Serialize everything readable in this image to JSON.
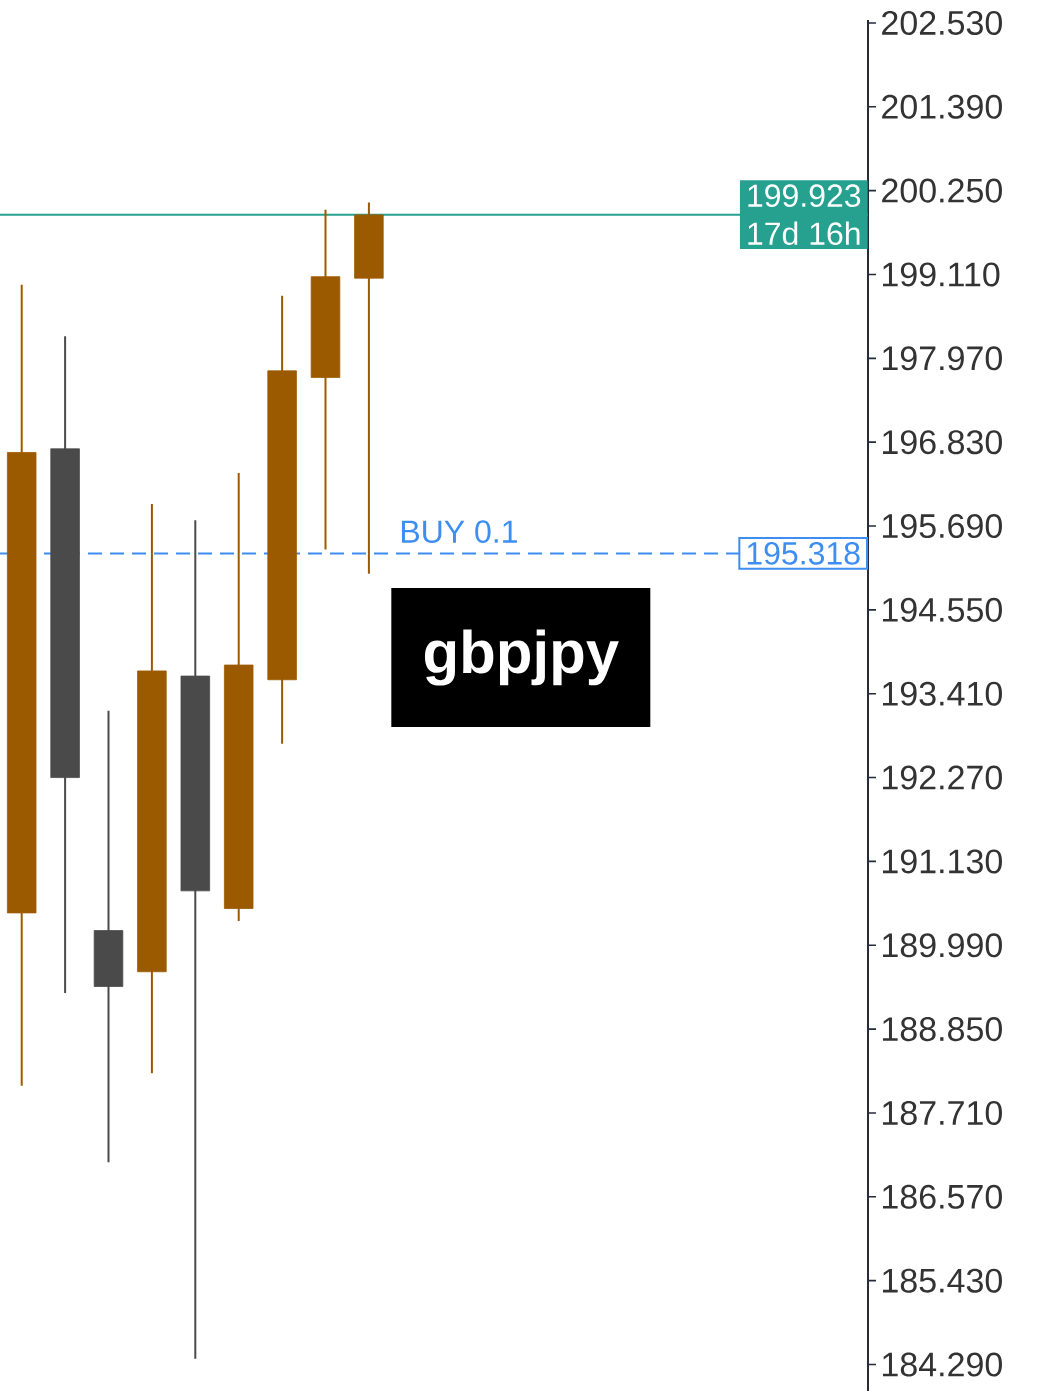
{
  "chart_data": {
    "type": "candlestick",
    "title": "gbpjpy",
    "categories": [
      null,
      null,
      null,
      null,
      null,
      null,
      null,
      null,
      null,
      null,
      null,
      null,
      null,
      null,
      null,
      null,
      null,
      null,
      null,
      null
    ],
    "ohlc": [
      [
        190.43,
        198.97,
        188.08,
        196.69
      ],
      [
        196.74,
        198.27,
        189.34,
        192.27
      ],
      [
        190.19,
        193.18,
        187.04,
        189.43
      ],
      [
        189.63,
        195.99,
        188.25,
        193.72
      ],
      [
        193.65,
        195.77,
        184.37,
        190.73
      ],
      [
        190.49,
        196.41,
        190.32,
        193.8
      ],
      [
        193.6,
        198.82,
        192.73,
        197.8
      ],
      [
        197.71,
        199.99,
        195.37,
        199.08
      ],
      [
        199.06,
        200.09,
        195.04,
        199.92
      ],
      null,
      null,
      null,
      null,
      null,
      null,
      null,
      null,
      null,
      null,
      null
    ],
    "colors": [
      "#9c5a00",
      "#4a4a4a",
      "#4a4a4a",
      "#9c5a00",
      "#4a4a4a",
      "#9c5a00",
      "#9c5a00",
      "#9c5a00",
      "#9c5a00",
      null,
      null,
      null,
      null,
      null,
      null,
      null,
      null,
      null,
      null,
      null
    ],
    "ylim": [
      183.93,
      202.57
    ],
    "yticks": [
      {
        "value": 184.29,
        "label": "184.290"
      },
      {
        "value": 185.43,
        "label": "185.430"
      },
      {
        "value": 186.57,
        "label": "186.570"
      },
      {
        "value": 187.71,
        "label": "187.710"
      },
      {
        "value": 188.85,
        "label": "188.850"
      },
      {
        "value": 189.99,
        "label": "189.990"
      },
      {
        "value": 191.13,
        "label": "191.130"
      },
      {
        "value": 192.27,
        "label": "192.270"
      },
      {
        "value": 193.41,
        "label": "193.410"
      },
      {
        "value": 194.55,
        "label": "194.550"
      },
      {
        "value": 195.69,
        "label": "195.690"
      },
      {
        "value": 196.83,
        "label": "196.830"
      },
      {
        "value": 197.97,
        "label": "197.970"
      },
      {
        "value": 199.11,
        "label": "199.110"
      },
      {
        "value": 200.25,
        "label": "200.250"
      },
      {
        "value": 201.39,
        "label": "201.390"
      },
      {
        "value": 202.53,
        "label": "202.530"
      }
    ],
    "ref_lines": [
      {
        "axis": "y",
        "value": 199.923,
        "label": "199.923",
        "color": "#26a18f"
      },
      {
        "axis": "y",
        "value": 195.318,
        "label": "195.318",
        "color": "#3d8ef0",
        "line_style": "dashed"
      }
    ],
    "annotations": [
      {
        "text": "17d 16h",
        "y": 199.923
      },
      {
        "text": "BUY 0.1",
        "y": 195.318
      }
    ]
  }
}
